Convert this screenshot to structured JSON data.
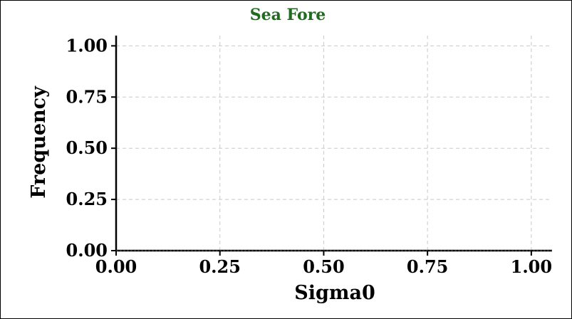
{
  "chart_data": {
    "type": "histogram",
    "title": "Sea Fore",
    "title_color": "#1f6b1f",
    "xlabel": "Sigma0",
    "ylabel": "Frequency",
    "xlim": [
      0.0,
      1.05
    ],
    "ylim": [
      0.0,
      1.05
    ],
    "xticks": [
      "0.00",
      "0.25",
      "0.50",
      "0.75",
      "1.00"
    ],
    "yticks": [
      "0.00",
      "0.25",
      "0.50",
      "0.75",
      "1.00"
    ],
    "xtick_values": [
      0.0,
      0.25,
      0.5,
      0.75,
      1.0
    ],
    "ytick_values": [
      0.0,
      0.25,
      0.5,
      0.75,
      1.0
    ],
    "grid": true,
    "grid_color": "#c8c8c8",
    "series": [
      {
        "x": [],
        "values": [],
        "color": "#000000"
      }
    ]
  }
}
